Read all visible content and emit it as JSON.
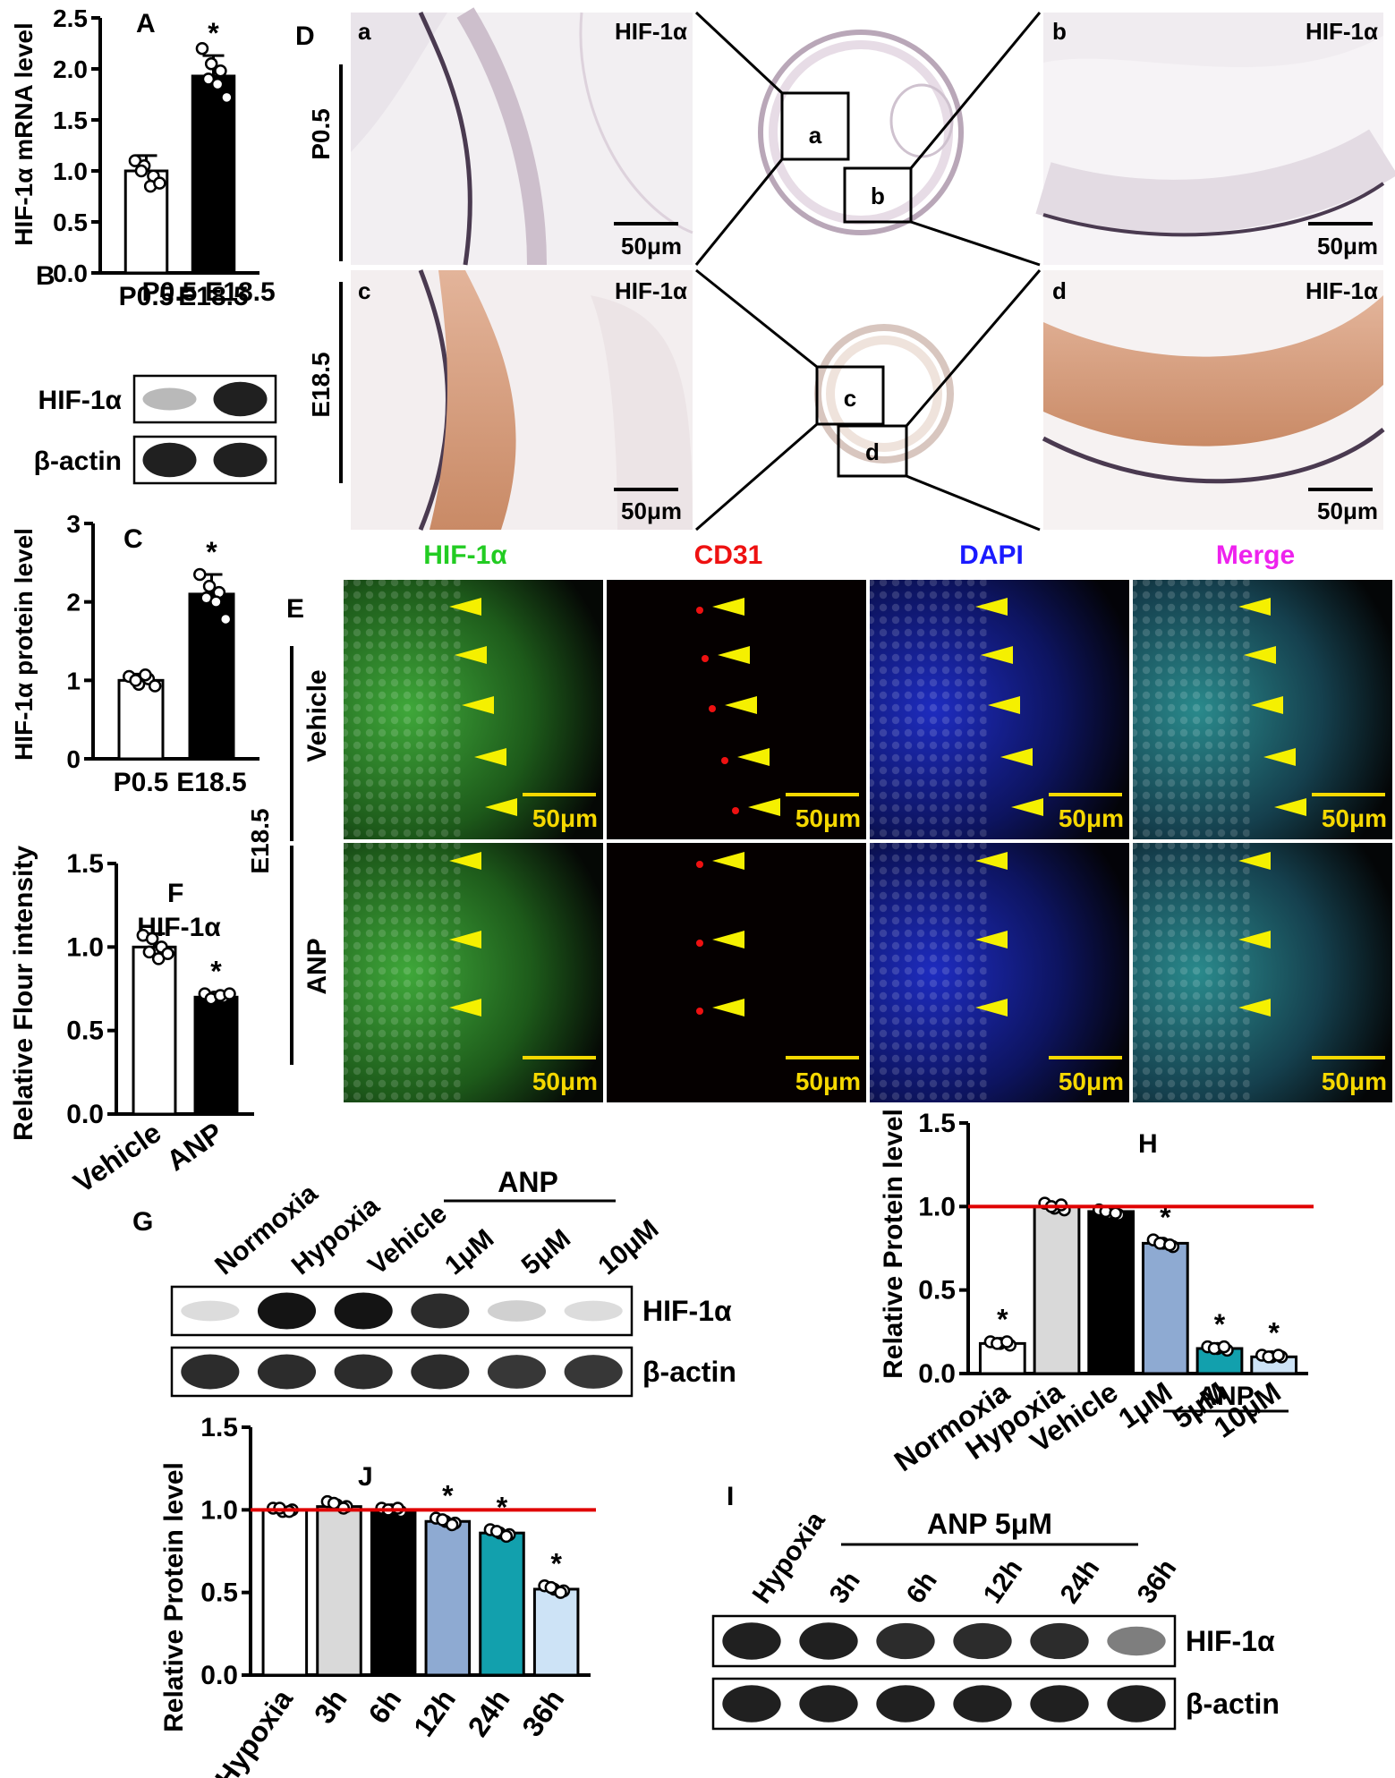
{
  "colors": {
    "bar_white": "#ffffff",
    "bar_gray": "#d9d9d9",
    "bar_black": "#000000",
    "bar_blue": "#8eaad2",
    "bar_teal": "#12a0ad",
    "bar_light_blue": "#cde3f6",
    "reference_line": "#e00000",
    "arrowhead": "#f5f000",
    "scale_text": "#f5d800",
    "channel_green": "#22cc22",
    "channel_red": "#ee1111",
    "channel_blue": "#1a1aff",
    "channel_magenta": "#ee22ee"
  },
  "panels": {
    "A": "A",
    "B": "B",
    "C": "C",
    "D": "D",
    "E": "E",
    "F": "F",
    "G": "G",
    "H": "H",
    "I": "I",
    "J": "J"
  },
  "chart_data": [
    {
      "panel": "A",
      "type": "bar",
      "ylabel": "HIF-1α mRNA level",
      "categories": [
        "P0.5",
        "E18.5"
      ],
      "values": [
        1.0,
        1.93
      ],
      "errors": [
        0.15,
        0.2
      ],
      "points": [
        [
          1.1,
          1.05,
          0.95,
          1.0,
          0.85,
          0.88
        ],
        [
          2.2,
          2.05,
          1.98,
          1.9,
          1.85,
          1.72
        ]
      ],
      "significance": [
        "",
        "*"
      ],
      "ylim": [
        0,
        2.5
      ],
      "yticks": [
        "0.0",
        "0.5",
        "1.0",
        "1.5",
        "2.0",
        "2.5"
      ],
      "bar_colors": [
        "#ffffff",
        "#000000"
      ]
    },
    {
      "panel": "C",
      "type": "bar",
      "ylabel": "HIF-1α protein level",
      "categories": [
        "P0.5",
        "E18.5"
      ],
      "values": [
        1.0,
        2.1
      ],
      "errors": [
        0.08,
        0.25
      ],
      "points": [
        [
          1.05,
          0.95,
          1.02,
          1.0,
          1.07,
          0.93
        ],
        [
          2.35,
          2.2,
          2.12,
          2.05,
          2.0,
          1.78
        ]
      ],
      "significance": [
        "",
        "*"
      ],
      "ylim": [
        0,
        3
      ],
      "yticks": [
        "0",
        "1",
        "2",
        "3"
      ],
      "bar_colors": [
        "#ffffff",
        "#000000"
      ]
    },
    {
      "panel": "F",
      "type": "bar",
      "title": "HIF-1α",
      "ylabel": "Relative Flour intensity",
      "categories": [
        "Vehicle",
        "ANP"
      ],
      "values": [
        1.0,
        0.7
      ],
      "errors": [
        0.08,
        0.02
      ],
      "points": [
        [
          1.07,
          1.05,
          1.0,
          0.97,
          0.93,
          0.96
        ],
        [
          0.72,
          0.7,
          0.7,
          0.69,
          0.71,
          0.72
        ]
      ],
      "significance": [
        "",
        "*"
      ],
      "ylim": [
        0,
        1.5
      ],
      "yticks": [
        "0.0",
        "0.5",
        "1.0",
        "1.5"
      ],
      "bar_colors": [
        "#ffffff",
        "#000000"
      ]
    },
    {
      "panel": "H",
      "type": "bar",
      "ylabel": "Relative Protein level",
      "categories": [
        "Normoxia",
        "Hypoxia",
        "Vehicle",
        "1μM",
        "5μM",
        "10μM"
      ],
      "group_label": "ANP",
      "values": [
        0.18,
        1.0,
        0.97,
        0.78,
        0.15,
        0.1
      ],
      "points": [
        [
          0.19,
          0.18,
          0.17,
          0.18,
          0.19
        ],
        [
          1.02,
          0.99,
          0.98,
          1.0,
          1.01
        ],
        [
          0.98,
          0.96,
          0.95,
          0.97,
          0.96
        ],
        [
          0.8,
          0.78,
          0.76,
          0.78,
          0.77
        ],
        [
          0.16,
          0.15,
          0.14,
          0.15,
          0.16
        ],
        [
          0.11,
          0.1,
          0.1,
          0.1,
          0.11
        ]
      ],
      "significance": [
        "*",
        "",
        "",
        "*",
        "*",
        "*"
      ],
      "reference_line": 1.0,
      "ylim": [
        0,
        1.5
      ],
      "yticks": [
        "0.0",
        "0.5",
        "1.0",
        "1.5"
      ],
      "bar_colors": [
        "#ffffff",
        "#d9d9d9",
        "#000000",
        "#8eaad2",
        "#12a0ad",
        "#cde3f6"
      ]
    },
    {
      "panel": "J",
      "type": "bar",
      "ylabel": "Relative Protein level",
      "categories": [
        "Hypoxia",
        "3h",
        "6h",
        "12h",
        "24h",
        "36h"
      ],
      "values": [
        1.0,
        1.02,
        1.0,
        0.93,
        0.86,
        0.52
      ],
      "points": [
        [
          1.01,
          0.99,
          1.0,
          1.01,
          0.99
        ],
        [
          1.05,
          1.03,
          1.02,
          1.04,
          1.01
        ],
        [
          1.01,
          1.0,
          0.99,
          1.0,
          1.01
        ],
        [
          0.95,
          0.93,
          0.92,
          0.94,
          0.91
        ],
        [
          0.88,
          0.86,
          0.85,
          0.87,
          0.84
        ],
        [
          0.54,
          0.52,
          0.51,
          0.53,
          0.5
        ]
      ],
      "significance": [
        "",
        "",
        "",
        "*",
        "*",
        "*"
      ],
      "reference_line": 1.0,
      "ylim": [
        0,
        1.5
      ],
      "yticks": [
        "0.0",
        "0.5",
        "1.0",
        "1.5"
      ],
      "bar_colors": [
        "#ffffff",
        "#d9d9d9",
        "#000000",
        "#8eaad2",
        "#12a0ad",
        "#cde3f6"
      ]
    }
  ],
  "blot_B": {
    "lanes": [
      "P0.5",
      "E18.5"
    ],
    "rows": [
      {
        "label": "HIF-1α",
        "intensity": [
          0.3,
          0.95
        ]
      },
      {
        "label": "β-actin",
        "intensity": [
          0.95,
          0.95
        ]
      }
    ]
  },
  "blot_G": {
    "lanes": [
      "Normoxia",
      "Hypoxia",
      "Vehicle",
      "1μM",
      "5μM",
      "10μM"
    ],
    "group_label": "ANP",
    "rows": [
      {
        "label": "HIF-1α",
        "intensity": [
          0.15,
          1.0,
          1.0,
          0.9,
          0.2,
          0.15
        ]
      },
      {
        "label": "β-actin",
        "intensity": [
          0.9,
          0.9,
          0.9,
          0.9,
          0.85,
          0.85
        ]
      }
    ]
  },
  "blot_I": {
    "lanes": [
      "Hypoxia",
      "3h",
      "6h",
      "12h",
      "24h",
      "36h"
    ],
    "group_label": "ANP 5μM",
    "rows": [
      {
        "label": "HIF-1α",
        "intensity": [
          0.95,
          0.95,
          0.9,
          0.9,
          0.9,
          0.55
        ]
      },
      {
        "label": "β-actin",
        "intensity": [
          0.95,
          0.95,
          0.95,
          0.95,
          0.95,
          0.95
        ]
      }
    ]
  },
  "histology_D": {
    "row_labels": [
      "P0.5",
      "E18.5"
    ],
    "insets": [
      "a",
      "b",
      "c",
      "d"
    ],
    "stain_label": "HIF-1α",
    "scale_bar": "50μm"
  },
  "fluorescence_E": {
    "group_label": "E18.5",
    "channels": [
      "HIF-1α",
      "CD31",
      "DAPI",
      "Merge"
    ],
    "row_labels": [
      "Vehicle",
      "ANP"
    ],
    "scale_bar": "50μm"
  }
}
